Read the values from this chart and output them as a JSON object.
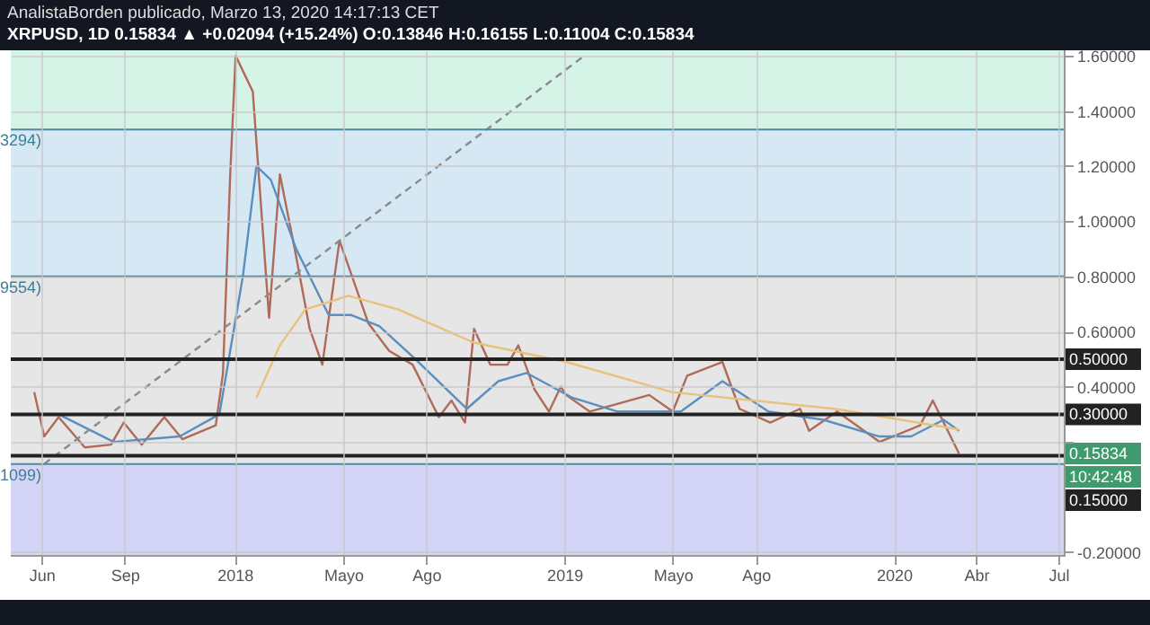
{
  "chart_data": {
    "type": "line",
    "title": "AnalistaBorden publicado, Marzo 13, 2020 14:17:13 CET",
    "subtitle": "XRPUSD, 1D  0.15834 ▲ +0.02094 (+15.24%) O:0.13846 H:0.16155 L:0.11004 C:0.15834",
    "xlim": [
      "2017-04-28",
      "2020-07-07"
    ],
    "xticks": [
      {
        "value": "2017-06-01",
        "label": "Jun"
      },
      {
        "value": "2017-09-01",
        "label": "Sep"
      },
      {
        "value": "2018-01-01",
        "label": "2018"
      },
      {
        "value": "2018-05-01",
        "label": "Mayo"
      },
      {
        "value": "2018-08-01",
        "label": "Ago"
      },
      {
        "value": "2019-01-01",
        "label": "2019"
      },
      {
        "value": "2019-05-01",
        "label": "Mayo"
      },
      {
        "value": "2019-08-01",
        "label": "Ago"
      },
      {
        "value": "2020-01-01",
        "label": "2020"
      },
      {
        "value": "2020-04-01",
        "label": "Abr"
      },
      {
        "value": "2020-07-01",
        "label": "Jul"
      }
    ],
    "ylim": [
      -0.21,
      1.62
    ],
    "yticks": [
      {
        "value": 1.6,
        "label": "1.60000"
      },
      {
        "value": 1.4,
        "label": "1.40000"
      },
      {
        "value": 1.2,
        "label": "1.20000"
      },
      {
        "value": 1.0,
        "label": "1.00000"
      },
      {
        "value": 0.8,
        "label": "0.80000"
      },
      {
        "value": 0.6,
        "label": "0.60000"
      },
      {
        "value": 0.4,
        "label": "0.40000"
      },
      {
        "value": 0.2,
        "label": null
      },
      {
        "value": -0.2,
        "label": "-0.20000"
      }
    ],
    "grid": true,
    "series": [
      {
        "color": "#b06a5a",
        "x": [
          "2017-05-24",
          "2017-06-04",
          "2017-06-20",
          "2017-07-19",
          "2017-08-17",
          "2017-08-31",
          "2017-09-20",
          "2017-10-15",
          "2017-11-04",
          "2017-12-11",
          "2017-12-19",
          "2017-12-27",
          "2018-01-02",
          "2018-01-21",
          "2018-02-08",
          "2018-02-20",
          "2018-03-09",
          "2018-03-25",
          "2018-04-08",
          "2018-04-27",
          "2018-05-13",
          "2018-05-29",
          "2018-06-21",
          "2018-07-17",
          "2018-08-15",
          "2018-08-29",
          "2018-09-13",
          "2018-09-23",
          "2018-10-11",
          "2018-10-30",
          "2018-11-11",
          "2018-11-29",
          "2018-12-15",
          "2018-12-28",
          "2019-01-03",
          "2019-01-29",
          "2019-04-05",
          "2019-05-01",
          "2019-05-17",
          "2019-06-25",
          "2019-07-14",
          "2019-08-17",
          "2019-09-19",
          "2019-09-29",
          "2019-10-30",
          "2019-12-16",
          "2020-01-30",
          "2020-02-13",
          "2020-03-13"
        ],
        "values": [
          0.38,
          0.22,
          0.29,
          0.18,
          0.19,
          0.27,
          0.19,
          0.29,
          0.21,
          0.26,
          0.45,
          1.17,
          1.6,
          1.47,
          0.65,
          1.17,
          0.89,
          0.61,
          0.48,
          0.93,
          0.78,
          0.63,
          0.53,
          0.48,
          0.29,
          0.35,
          0.27,
          0.61,
          0.48,
          0.48,
          0.55,
          0.39,
          0.31,
          0.4,
          0.37,
          0.31,
          0.37,
          0.31,
          0.44,
          0.49,
          0.32,
          0.27,
          0.32,
          0.24,
          0.31,
          0.2,
          0.26,
          0.35,
          0.158
        ]
      },
      {
        "color": "#5b8fbf",
        "x": [
          "2017-06-20",
          "2017-08-20",
          "2017-11-01",
          "2017-12-15",
          "2018-01-10",
          "2018-01-25",
          "2018-02-10",
          "2018-03-10",
          "2018-04-15",
          "2018-05-10",
          "2018-06-10",
          "2018-07-20",
          "2018-09-15",
          "2018-10-20",
          "2018-11-20",
          "2019-01-10",
          "2019-03-01",
          "2019-05-10",
          "2019-06-25",
          "2019-08-15",
          "2019-10-15",
          "2019-12-15",
          "2020-01-20",
          "2020-02-25",
          "2020-03-13"
        ],
        "values": [
          0.3,
          0.2,
          0.22,
          0.3,
          0.8,
          1.2,
          1.15,
          0.9,
          0.66,
          0.66,
          0.62,
          0.5,
          0.32,
          0.42,
          0.45,
          0.36,
          0.31,
          0.31,
          0.42,
          0.31,
          0.28,
          0.22,
          0.22,
          0.28,
          0.24
        ]
      },
      {
        "color": "#e6c27a",
        "x": [
          "2018-01-25",
          "2018-02-20",
          "2018-03-20",
          "2018-05-07",
          "2018-07-01",
          "2018-09-23",
          "2019-01-03",
          "2019-05-01",
          "2019-10-27",
          "2020-02-24",
          "2020-03-13"
        ],
        "values": [
          0.36,
          0.55,
          0.68,
          0.73,
          0.68,
          0.56,
          0.49,
          0.38,
          0.32,
          0.255,
          0.245
        ]
      },
      {
        "color": "#8a8a8a",
        "line_style": "dashed",
        "x": [
          "2017-06-04",
          "2019-01-23"
        ],
        "values": [
          0.12,
          1.6
        ]
      }
    ],
    "bands": [
      {
        "axis": "y",
        "from": 1.333,
        "to": 1.62,
        "color": "#d5f3e6"
      },
      {
        "axis": "y",
        "from": 0.8,
        "to": 1.333,
        "label": "3294)",
        "color": "#d6e8f4"
      },
      {
        "axis": "y",
        "from": 0.12,
        "to": 0.8,
        "label": "9554)",
        "color": "#e6e6e6"
      },
      {
        "axis": "y",
        "from": -0.21,
        "to": 0.12,
        "label": "1099)",
        "color": "#d4d4f6"
      }
    ],
    "ref_lines": [
      {
        "axis": "y",
        "value": 0.5,
        "label": "0.50000",
        "color": "#222222"
      },
      {
        "axis": "y",
        "value": 0.3,
        "label": "0.30000",
        "color": "#222222"
      },
      {
        "axis": "y",
        "value": 0.15,
        "label": "0.15000",
        "color": "#222222"
      },
      {
        "axis": "y",
        "value": 1.333,
        "color": "#4f8aa0"
      },
      {
        "axis": "y",
        "value": 0.8,
        "color": "#4f8aa0"
      },
      {
        "axis": "y",
        "value": 0.12,
        "color": "#4f8aa0"
      }
    ],
    "annotations": [
      "0.15834",
      "10:42:48"
    ]
  }
}
